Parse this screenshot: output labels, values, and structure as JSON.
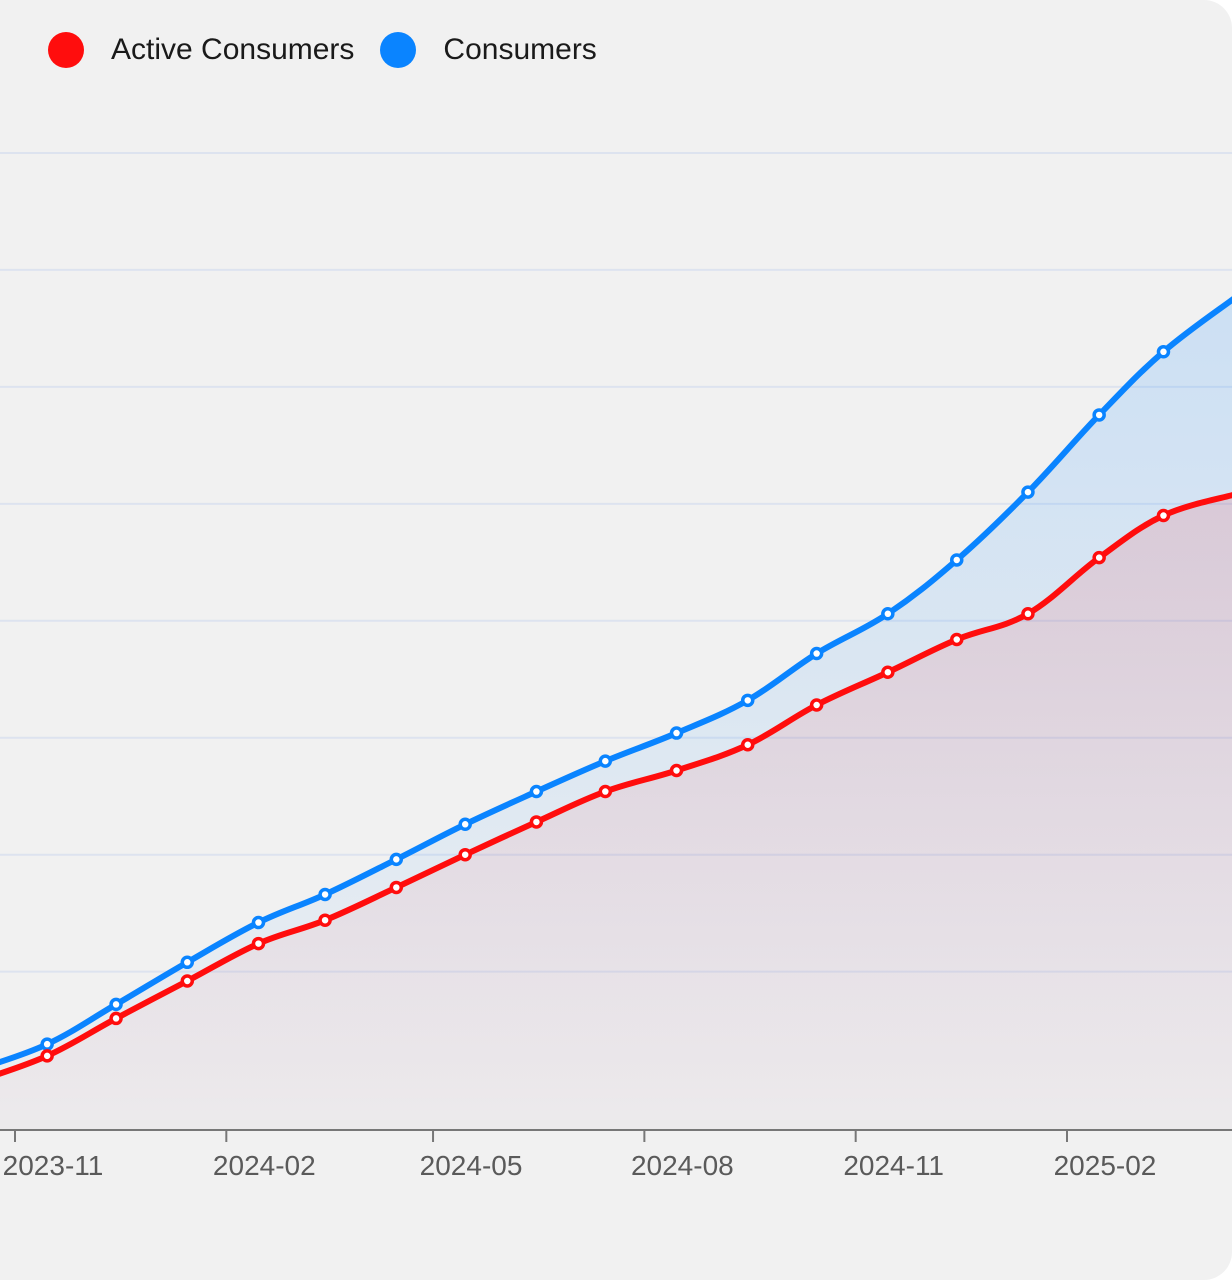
{
  "chart_data": {
    "type": "area",
    "legend_position": "top-left",
    "grid": true,
    "x_ticks": [
      "2023-11",
      "2024-02",
      "2024-05",
      "2024-08",
      "2024-11",
      "2025-02"
    ],
    "x_tick_dates": [
      "2023-11-01",
      "2024-02-01",
      "2024-05-01",
      "2024-08-01",
      "2024-11-01",
      "2025-02-01"
    ],
    "x": [
      "2023-10-15",
      "2023-11-15",
      "2023-12-15",
      "2024-01-15",
      "2024-02-15",
      "2024-03-15",
      "2024-04-15",
      "2024-05-15",
      "2024-06-15",
      "2024-07-15",
      "2024-08-15",
      "2024-09-15",
      "2024-10-15",
      "2024-11-15",
      "2024-12-15",
      "2025-01-15",
      "2025-02-15",
      "2025-03-15",
      "2025-04-15"
    ],
    "series": [
      {
        "name": "Consumers",
        "color": "#0a84ff",
        "values": [
          0.4,
          0.95,
          1.8,
          2.7,
          3.55,
          4.15,
          4.9,
          5.65,
          6.35,
          7.0,
          7.6,
          8.3,
          9.3,
          10.15,
          11.3,
          12.75,
          14.4,
          15.75,
          16.9
        ]
      },
      {
        "name": "Active Consumers",
        "color": "#ff0d0d",
        "values": [
          0.15,
          0.7,
          1.5,
          2.3,
          3.1,
          3.6,
          4.3,
          5.0,
          5.7,
          6.35,
          6.8,
          7.35,
          8.2,
          8.9,
          9.6,
          10.15,
          11.35,
          12.25,
          12.7
        ]
      }
    ],
    "ylim": [
      -0.5,
      22.5
    ],
    "y_gridlines": [
      2.5,
      5.0,
      7.5,
      10.0,
      12.5,
      15.0,
      17.5,
      20.0
    ]
  }
}
